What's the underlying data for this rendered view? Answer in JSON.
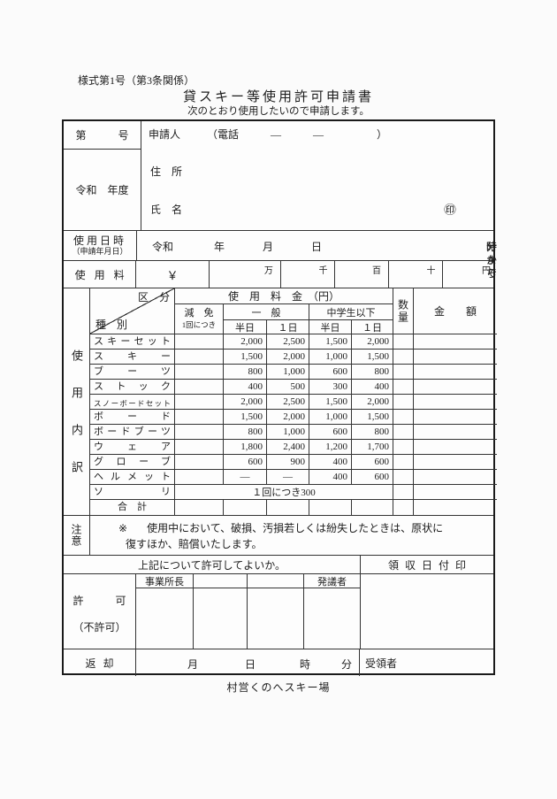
{
  "page": {
    "form_number_note": "様式第1号（第3条関係）",
    "title": "貸スキー等使用許可申請書",
    "subtitle": "次のとおり使用したいので申請します。",
    "footer": "村営くのへスキー場"
  },
  "applicant_section": {
    "doc_no": "第　　　号",
    "era_year": "令和　年度",
    "applicant_line": "申請人　　　（電話　　　―　　　―　　　　　）",
    "address_label": "住　所",
    "name_label": "氏　名",
    "seal_mark": "㊞"
  },
  "usage_datetime": {
    "row_label": "使用日時",
    "row_sublabel": "（申請年月日）",
    "era": "令和",
    "year": "年",
    "month": "月",
    "day": "日",
    "from_hour": "時",
    "from_min": "分から",
    "to_hour": "時",
    "to_min": "分まで"
  },
  "usage_fee_row": {
    "label": "使用料",
    "yen_sign": "￥",
    "unit_man": "万",
    "unit_sen": "千",
    "unit_hyaku": "百",
    "unit_ju": "十",
    "unit_en": "円"
  },
  "fee_table": {
    "corner_top": "区　分",
    "corner_bottom": "種　別",
    "fee_title": "使　用　料　金　（円）",
    "reduction_label": "減　免",
    "reduction_sub": "1回につき",
    "general_label": "一　般",
    "junior_label": "中学生以下",
    "half_day": "半日",
    "full_day": "１日",
    "qty_label": "数量",
    "amount_label": "金　　額",
    "side_label": "使用内訳",
    "rows": [
      {
        "name": "スキーセット",
        "g_half": "2,000",
        "g_full": "2,500",
        "j_half": "1,500",
        "j_full": "2,000"
      },
      {
        "name": "スキー",
        "g_half": "1,500",
        "g_full": "2,000",
        "j_half": "1,000",
        "j_full": "1,500"
      },
      {
        "name": "ブーツ",
        "g_half": "800",
        "g_full": "1,000",
        "j_half": "600",
        "j_full": "800"
      },
      {
        "name": "ストック",
        "g_half": "400",
        "g_full": "500",
        "j_half": "300",
        "j_full": "400"
      },
      {
        "name": "スノーボードセット",
        "g_half": "2,000",
        "g_full": "2,500",
        "j_half": "1,500",
        "j_full": "2,000"
      },
      {
        "name": "ボード",
        "g_half": "1,500",
        "g_full": "2,000",
        "j_half": "1,000",
        "j_full": "1,500"
      },
      {
        "name": "ボードブーツ",
        "g_half": "800",
        "g_full": "1,000",
        "j_half": "600",
        "j_full": "800"
      },
      {
        "name": "ウェア",
        "g_half": "1,800",
        "g_full": "2,400",
        "j_half": "1,200",
        "j_full": "1,700"
      },
      {
        "name": "グローブ",
        "g_half": "600",
        "g_full": "900",
        "j_half": "400",
        "j_full": "600"
      },
      {
        "name": "ヘルメット",
        "g_half": "―",
        "g_full": "―",
        "j_half": "400",
        "j_full": "600"
      },
      {
        "name": "ソリ",
        "merged": "１回につき300"
      },
      {
        "name": "合　計"
      }
    ]
  },
  "note_section": {
    "side_label": "注意",
    "marker": "※",
    "line1": "使用中において、破損、汚損若しくは紛失したときは、原状に",
    "line2": "復すほか、賠償いたします。"
  },
  "approval_section": {
    "question": "上記について許可してよいか。",
    "receipt_stamp_label": "領収日付印",
    "permit_label": "許　　　可",
    "deny_label": "（不許可）",
    "head_label": "事業所長",
    "proposer_label": "発議者"
  },
  "return_section": {
    "label": "返却",
    "month": "月",
    "day": "日",
    "hour": "時",
    "minute": "分",
    "receiver_label": "受領者"
  }
}
